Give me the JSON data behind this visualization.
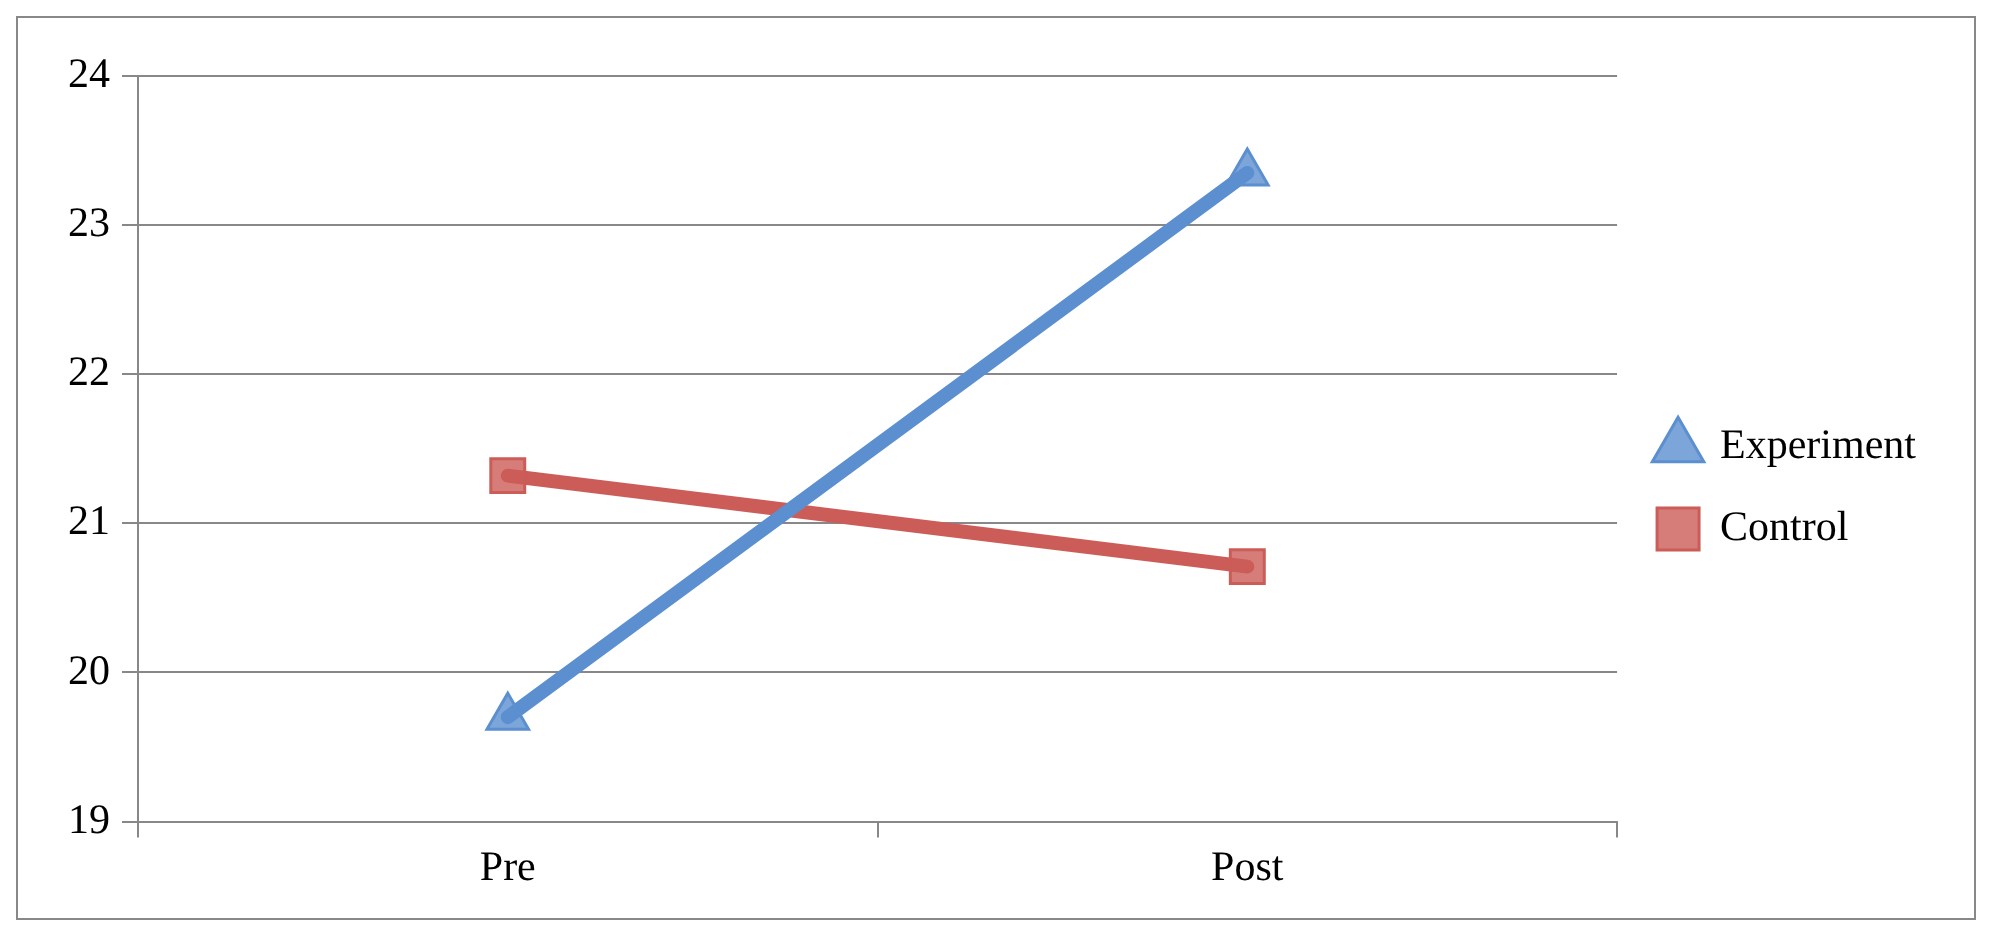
{
  "chart_data": {
    "type": "line",
    "categories": [
      "Pre",
      "Post"
    ],
    "series": [
      {
        "name": "Experiment",
        "color": "#5b8fd0",
        "marker": "triangle",
        "values": [
          19.7,
          23.35
        ]
      },
      {
        "name": "Control",
        "color": "#cc5c57",
        "marker": "square",
        "values": [
          21.32,
          20.71
        ]
      }
    ],
    "ylim": [
      19,
      24
    ],
    "yticks": [
      19,
      20,
      21,
      22,
      23,
      24
    ],
    "grid": "y",
    "legend": "right"
  }
}
